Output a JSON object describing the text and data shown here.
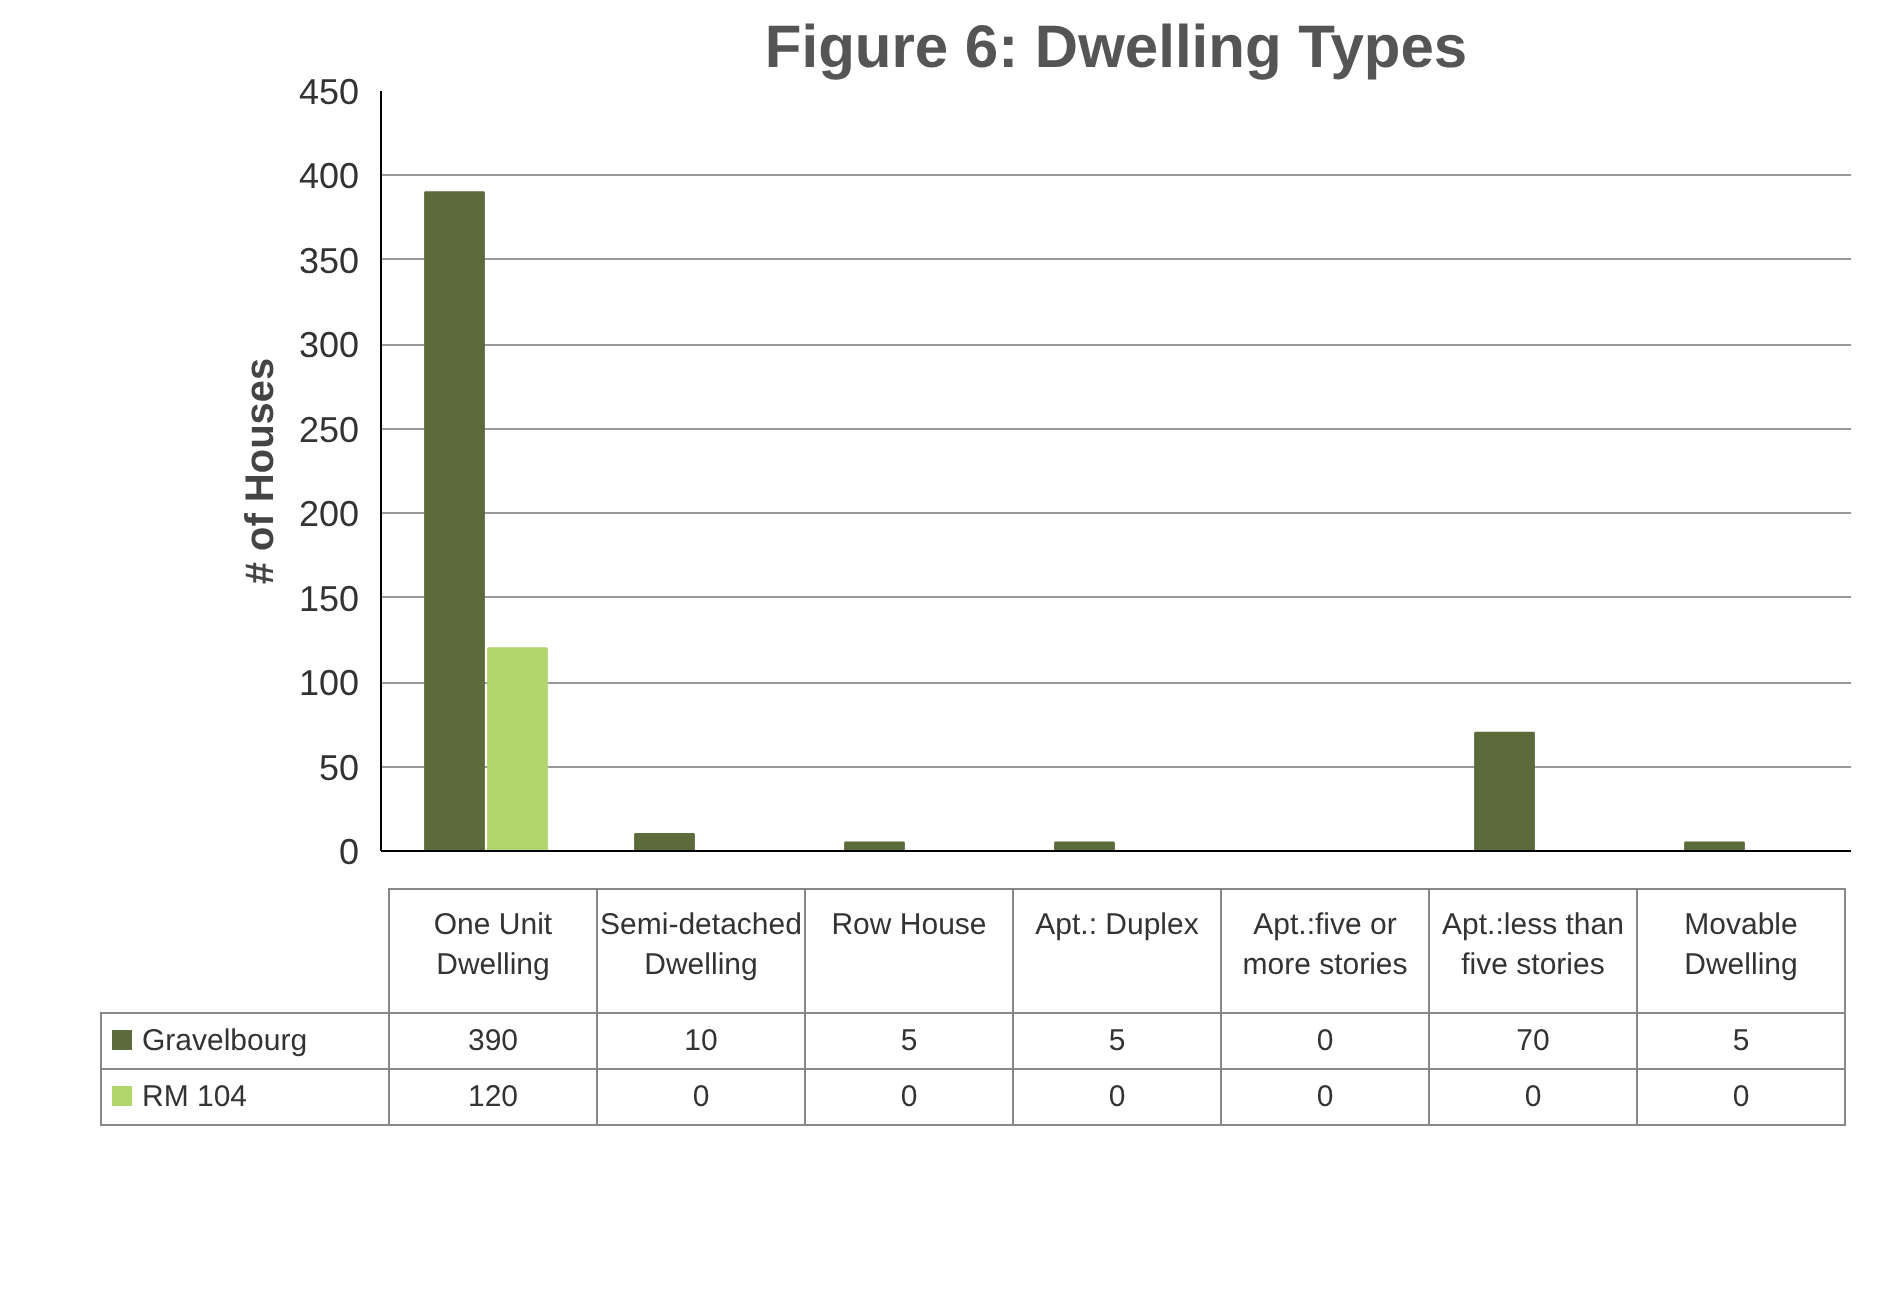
{
  "chart_data": {
    "type": "bar",
    "title": "Figure 6: Dwelling Types",
    "ylabel": "# of Houses",
    "categories": [
      "One Unit Dwelling",
      "Semi-detached Dwelling",
      "Row House",
      "Apt.: Duplex",
      "Apt.:five or more stories",
      "Apt.:less than five stories",
      "Movable Dwelling"
    ],
    "series": [
      {
        "name": "Gravelbourg",
        "color": "#5c6b3b",
        "values": [
          390,
          10,
          5,
          5,
          0,
          70,
          5
        ]
      },
      {
        "name": "RM 104",
        "color": "#b3d66b",
        "values": [
          120,
          0,
          0,
          0,
          0,
          0,
          0
        ]
      }
    ],
    "ylim": [
      0,
      450
    ],
    "yticks": [
      0,
      50,
      100,
      150,
      200,
      250,
      300,
      350,
      400,
      450
    ],
    "grid": "y",
    "legend": "bottom",
    "data_labels": true
  }
}
